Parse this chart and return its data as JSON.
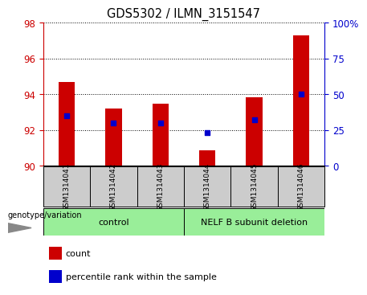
{
  "title": "GDS5302 / ILMN_3151547",
  "samples": [
    "GSM1314041",
    "GSM1314042",
    "GSM1314043",
    "GSM1314044",
    "GSM1314045",
    "GSM1314046"
  ],
  "count_values": [
    94.7,
    93.2,
    93.5,
    90.85,
    93.85,
    97.3
  ],
  "percentile_values": [
    35,
    30,
    30,
    23,
    32,
    50
  ],
  "ylim_left": [
    90,
    98
  ],
  "ylim_right": [
    0,
    100
  ],
  "yticks_left": [
    90,
    92,
    94,
    96,
    98
  ],
  "yticks_right": [
    0,
    25,
    50,
    75,
    100
  ],
  "ytick_labels_right": [
    "0",
    "25",
    "50",
    "75",
    "100%"
  ],
  "bar_color": "#cc0000",
  "dot_color": "#0000cc",
  "bar_width": 0.35,
  "left_axis_color": "#cc0000",
  "right_axis_color": "#0000cc",
  "grid_color": "black",
  "control_color": "#99ee99",
  "nelf_color": "#99ee99",
  "label_box_color": "#cccccc",
  "fig_width": 4.61,
  "fig_height": 3.63,
  "dpi": 100
}
